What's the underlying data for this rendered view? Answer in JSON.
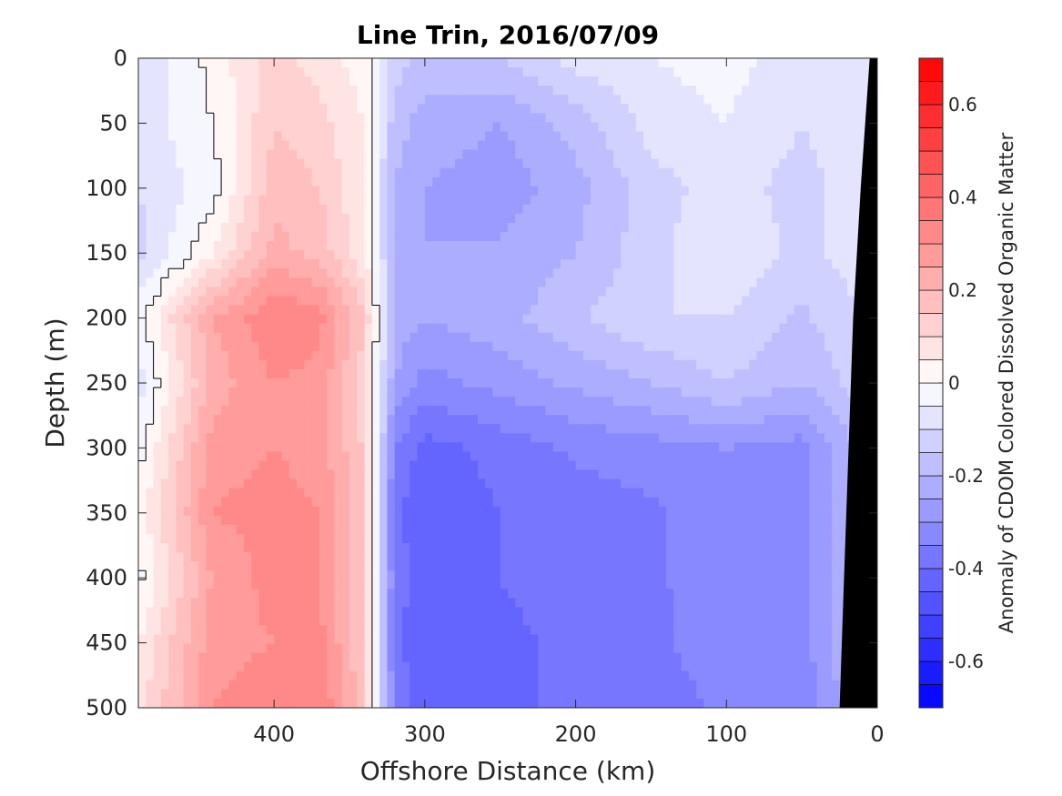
{
  "chart_data": {
    "type": "heatmap",
    "title": "Line Trin, 2016/07/09",
    "xlabel": "Offshore Distance (km)",
    "ylabel": "Depth (m)",
    "colorbar_label": "Anomaly of CDOM Colored Dissolved Organic Matter",
    "x_reversed": true,
    "y_reversed": true,
    "xlim": [
      490,
      0
    ],
    "ylim": [
      0,
      500
    ],
    "clim": [
      -0.7,
      0.7
    ],
    "x_ticks": [
      400,
      300,
      200,
      100,
      0
    ],
    "x_tick_labels": [
      "400",
      "300",
      "200",
      "100",
      "0"
    ],
    "y_ticks": [
      0,
      50,
      100,
      150,
      200,
      250,
      300,
      350,
      400,
      450,
      500
    ],
    "y_tick_labels": [
      "0",
      "50",
      "100",
      "150",
      "200",
      "250",
      "300",
      "350",
      "400",
      "450",
      "500"
    ],
    "colorbar_ticks": [
      0.6,
      0.4,
      0.2,
      0,
      -0.2,
      -0.4,
      -0.6
    ],
    "colorbar_tick_labels": [
      "0.6",
      "0.4",
      "0.2",
      "0",
      "-0.2",
      "-0.4",
      "-0.6"
    ],
    "contour_levels": 28,
    "zero_contour": true,
    "colormap": {
      "low": "#0000ff",
      "mid": "#ffffff",
      "high": "#ff0000"
    },
    "bathymetry_mask_color": "#000000",
    "bathymetry_x_at_depth": [
      [
        0,
        5
      ],
      [
        100,
        11
      ],
      [
        200,
        16
      ],
      [
        300,
        19
      ],
      [
        400,
        22
      ],
      [
        500,
        25
      ]
    ],
    "depths": [
      0,
      50,
      100,
      150,
      200,
      250,
      300,
      350,
      400,
      450,
      500
    ],
    "distances": [
      490,
      440,
      400,
      370,
      340,
      320,
      300,
      250,
      200,
      150,
      100,
      50,
      0
    ],
    "values": [
      [
        -0.1,
        0.02,
        0.12,
        0.08,
        0.02,
        -0.12,
        -0.18,
        -0.15,
        -0.08,
        -0.05,
        -0.03,
        -0.08,
        -0.05
      ],
      [
        -0.08,
        0.0,
        0.15,
        0.12,
        0.05,
        -0.18,
        -0.22,
        -0.25,
        -0.18,
        -0.08,
        -0.05,
        -0.1,
        -0.05
      ],
      [
        -0.1,
        -0.02,
        0.18,
        0.15,
        0.05,
        -0.2,
        -0.25,
        -0.28,
        -0.22,
        -0.12,
        -0.08,
        -0.12,
        -0.06
      ],
      [
        -0.12,
        0.05,
        0.22,
        0.18,
        0.06,
        -0.2,
        -0.25,
        -0.24,
        -0.2,
        -0.12,
        -0.05,
        -0.12,
        -0.06
      ],
      [
        -0.02,
        0.25,
        0.35,
        0.32,
        0.15,
        -0.22,
        -0.25,
        -0.22,
        -0.16,
        -0.1,
        -0.1,
        -0.16,
        -0.08
      ],
      [
        -0.08,
        0.22,
        0.3,
        0.28,
        0.12,
        -0.25,
        -0.32,
        -0.28,
        -0.24,
        -0.2,
        -0.15,
        -0.2,
        -0.1
      ],
      [
        -0.02,
        0.28,
        0.3,
        0.28,
        0.14,
        -0.35,
        -0.42,
        -0.38,
        -0.34,
        -0.32,
        -0.3,
        -0.32,
        -0.15
      ],
      [
        0.02,
        0.3,
        0.32,
        0.3,
        0.15,
        -0.38,
        -0.45,
        -0.4,
        -0.38,
        -0.36,
        -0.3,
        -0.32,
        -0.15
      ],
      [
        -0.02,
        0.26,
        0.32,
        0.3,
        0.14,
        -0.36,
        -0.45,
        -0.4,
        -0.36,
        -0.36,
        -0.32,
        -0.32,
        -0.15
      ],
      [
        0.05,
        0.28,
        0.3,
        0.32,
        0.15,
        -0.38,
        -0.45,
        -0.42,
        -0.38,
        -0.36,
        -0.32,
        -0.32,
        -0.15
      ],
      [
        0.08,
        0.3,
        0.34,
        0.35,
        0.16,
        -0.35,
        -0.45,
        -0.42,
        -0.38,
        -0.38,
        -0.34,
        -0.34,
        -0.15
      ]
    ]
  }
}
